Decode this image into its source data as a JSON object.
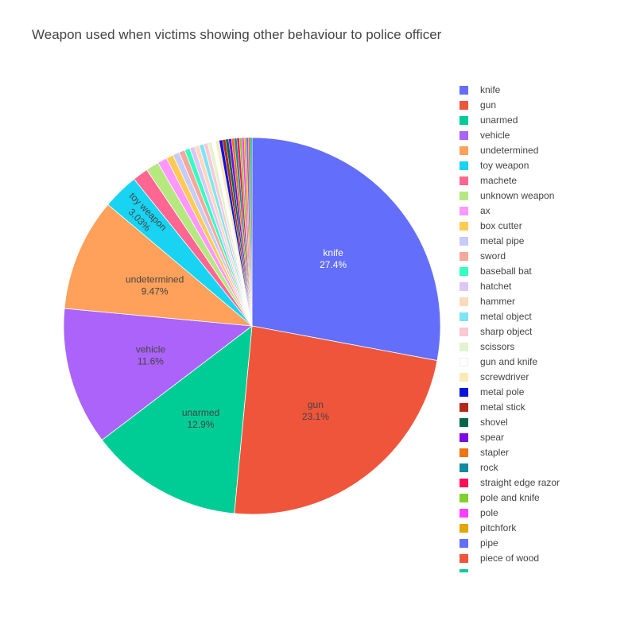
{
  "chart_data": {
    "type": "pie",
    "title": "Weapon used when victims showing other behaviour to police officer",
    "legend_placement": "right",
    "slices": [
      {
        "label": "knife",
        "value": 27.4,
        "color": "#636efa",
        "text_color": "#ffffff",
        "show_text": true
      },
      {
        "label": "gun",
        "value": 23.1,
        "color": "#ef553b",
        "text_color": "#444444",
        "show_text": true
      },
      {
        "label": "unarmed",
        "value": 12.9,
        "color": "#00cc96",
        "text_color": "#444444",
        "show_text": true
      },
      {
        "label": "vehicle",
        "value": 11.6,
        "color": "#ab63fa",
        "text_color": "#444444",
        "show_text": true
      },
      {
        "label": "undetermined",
        "value": 9.47,
        "color": "#ffa15a",
        "text_color": "#444444",
        "show_text": true
      },
      {
        "label": "toy weapon",
        "value": 3.03,
        "color": "#19d3f3",
        "text_color": "#444444",
        "show_text": true
      },
      {
        "label": "machete",
        "value": 1.3,
        "color": "#ff6692",
        "text_color": "#444444",
        "show_text": false
      },
      {
        "label": "unknown weapon",
        "value": 1.1,
        "color": "#b6e880",
        "text_color": "#444444",
        "show_text": false
      },
      {
        "label": "ax",
        "value": 0.8,
        "color": "#ff97ff",
        "text_color": "#444444",
        "show_text": false
      },
      {
        "label": "box cutter",
        "value": 0.6,
        "color": "#fecb52",
        "text_color": "#444444",
        "show_text": false
      },
      {
        "label": "metal pipe",
        "value": 0.55,
        "color": "#c6cbf7",
        "text_color": "#444444",
        "show_text": false
      },
      {
        "label": "sword",
        "value": 0.5,
        "color": "#f5a99b",
        "text_color": "#444444",
        "show_text": false
      },
      {
        "label": "baseball bat",
        "value": 0.45,
        "color": "#33ffc1",
        "text_color": "#444444",
        "show_text": false
      },
      {
        "label": "hatchet",
        "value": 0.42,
        "color": "#dcc6f7",
        "text_color": "#444444",
        "show_text": false
      },
      {
        "label": "hammer",
        "value": 0.4,
        "color": "#ffd9bc",
        "text_color": "#444444",
        "show_text": false
      },
      {
        "label": "metal object",
        "value": 0.38,
        "color": "#7ee4f5",
        "text_color": "#444444",
        "show_text": false
      },
      {
        "label": "sharp object",
        "value": 0.36,
        "color": "#fbc8d5",
        "text_color": "#444444",
        "show_text": false
      },
      {
        "label": "scissors",
        "value": 0.34,
        "color": "#e2f3d0",
        "text_color": "#444444",
        "show_text": false
      },
      {
        "label": "gun and knife",
        "value": 0.32,
        "color": "#ffffff",
        "text_color": "#444444",
        "show_text": false
      },
      {
        "label": "screwdriver",
        "value": 0.3,
        "color": "#fde9b8",
        "text_color": "#444444",
        "show_text": false
      },
      {
        "label": "metal pole",
        "value": 0.28,
        "color": "#0a14d9",
        "text_color": "#444444",
        "show_text": false
      },
      {
        "label": "metal stick",
        "value": 0.26,
        "color": "#b2281a",
        "text_color": "#444444",
        "show_text": false
      },
      {
        "label": "shovel",
        "value": 0.25,
        "color": "#00664b",
        "text_color": "#444444",
        "show_text": false
      },
      {
        "label": "spear",
        "value": 0.24,
        "color": "#7c0ae3",
        "text_color": "#444444",
        "show_text": false
      },
      {
        "label": "stapler",
        "value": 0.23,
        "color": "#f07412",
        "text_color": "#444444",
        "show_text": false
      },
      {
        "label": "rock",
        "value": 0.22,
        "color": "#138a9f",
        "text_color": "#444444",
        "show_text": false
      },
      {
        "label": "straight edge razor",
        "value": 0.21,
        "color": "#ff0d56",
        "text_color": "#444444",
        "show_text": false
      },
      {
        "label": "pole and knife",
        "value": 0.2,
        "color": "#7ed02e",
        "text_color": "#444444",
        "show_text": false
      },
      {
        "label": "pole",
        "value": 0.19,
        "color": "#ff3dff",
        "text_color": "#444444",
        "show_text": false
      },
      {
        "label": "pitchfork",
        "value": 0.18,
        "color": "#e3a60a",
        "text_color": "#444444",
        "show_text": false
      },
      {
        "label": "pipe",
        "value": 0.17,
        "color": "#636efa",
        "text_color": "#444444",
        "show_text": false
      },
      {
        "label": "piece of wood",
        "value": 0.16,
        "color": "#ef553b",
        "text_color": "#444444",
        "show_text": false
      },
      {
        "label": "",
        "value": 0.15,
        "color": "#00cc96",
        "text_color": "#444444",
        "show_text": false
      }
    ]
  }
}
